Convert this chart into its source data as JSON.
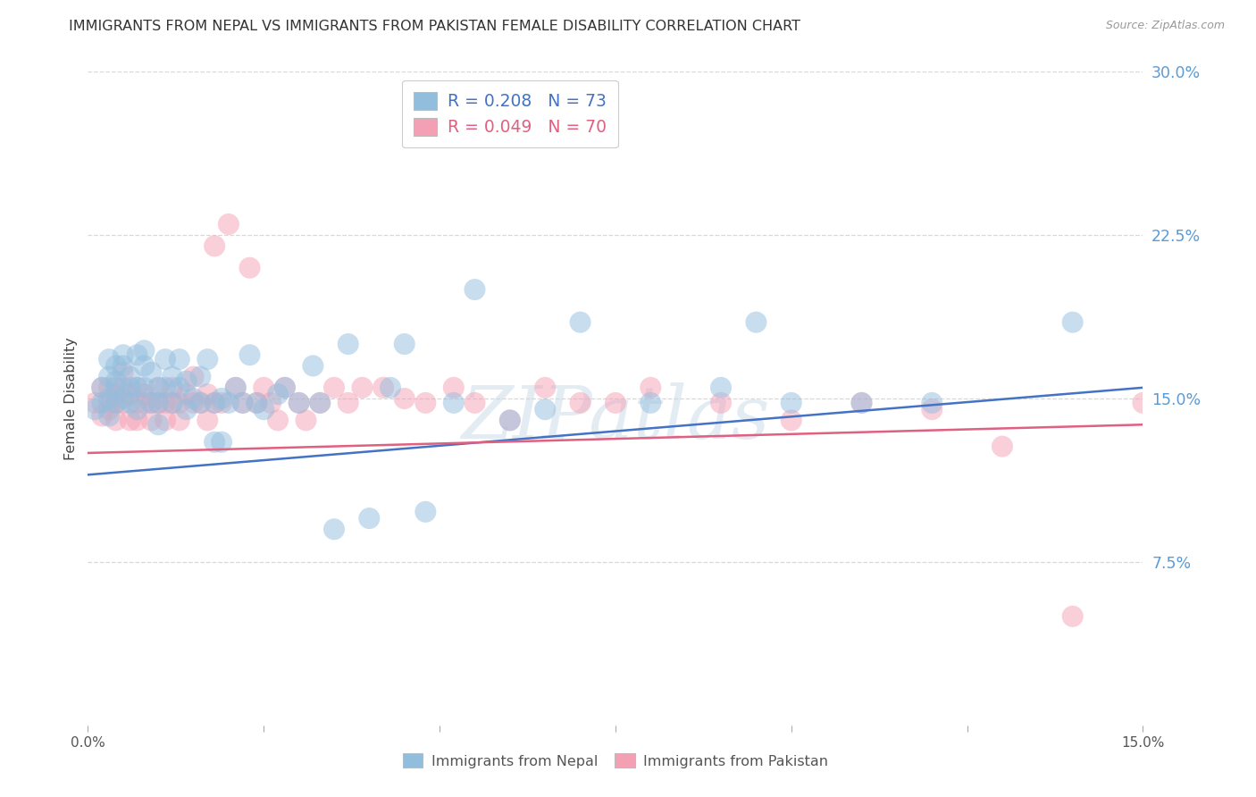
{
  "title": "IMMIGRANTS FROM NEPAL VS IMMIGRANTS FROM PAKISTAN FEMALE DISABILITY CORRELATION CHART",
  "source": "Source: ZipAtlas.com",
  "ylabel": "Female Disability",
  "x_min": 0.0,
  "x_max": 0.15,
  "y_min": 0.0,
  "y_max": 0.3,
  "y_ticks_right": [
    0.075,
    0.15,
    0.225,
    0.3
  ],
  "y_tick_labels_right": [
    "7.5%",
    "15.0%",
    "22.5%",
    "30.0%"
  ],
  "nepal_R": 0.208,
  "nepal_N": 73,
  "pakistan_R": 0.049,
  "pakistan_N": 70,
  "nepal_color": "#92bede",
  "pakistan_color": "#f4a0b4",
  "nepal_line_color": "#4472c4",
  "pakistan_line_color": "#e06080",
  "nepal_legend_color": "#4472c4",
  "pakistan_legend_color": "#e06080",
  "legend_label_nepal": "Immigrants from Nepal",
  "legend_label_pakistan": "Immigrants from Pakistan",
  "watermark": "ZIPatlas",
  "background_color": "#ffffff",
  "grid_color": "#d8d8d8",
  "right_tick_color": "#5b9bd5",
  "title_fontsize": 11.5,
  "nepal_x": [
    0.001,
    0.002,
    0.002,
    0.003,
    0.003,
    0.003,
    0.003,
    0.004,
    0.004,
    0.004,
    0.004,
    0.005,
    0.005,
    0.005,
    0.006,
    0.006,
    0.006,
    0.007,
    0.007,
    0.007,
    0.008,
    0.008,
    0.008,
    0.009,
    0.009,
    0.01,
    0.01,
    0.01,
    0.011,
    0.011,
    0.012,
    0.012,
    0.013,
    0.013,
    0.014,
    0.014,
    0.015,
    0.016,
    0.016,
    0.017,
    0.018,
    0.018,
    0.019,
    0.019,
    0.02,
    0.021,
    0.022,
    0.023,
    0.024,
    0.025,
    0.027,
    0.028,
    0.03,
    0.032,
    0.033,
    0.035,
    0.037,
    0.04,
    0.043,
    0.045,
    0.048,
    0.052,
    0.055,
    0.06,
    0.065,
    0.07,
    0.08,
    0.09,
    0.095,
    0.1,
    0.11,
    0.12,
    0.14
  ],
  "nepal_y": [
    0.145,
    0.148,
    0.155,
    0.142,
    0.15,
    0.16,
    0.168,
    0.148,
    0.158,
    0.165,
    0.155,
    0.15,
    0.165,
    0.17,
    0.148,
    0.16,
    0.155,
    0.145,
    0.155,
    0.17,
    0.155,
    0.165,
    0.172,
    0.148,
    0.162,
    0.155,
    0.148,
    0.138,
    0.168,
    0.155,
    0.16,
    0.148,
    0.155,
    0.168,
    0.145,
    0.158,
    0.15,
    0.148,
    0.16,
    0.168,
    0.13,
    0.148,
    0.15,
    0.13,
    0.148,
    0.155,
    0.148,
    0.17,
    0.148,
    0.145,
    0.152,
    0.155,
    0.148,
    0.165,
    0.148,
    0.09,
    0.175,
    0.095,
    0.155,
    0.175,
    0.098,
    0.148,
    0.2,
    0.14,
    0.145,
    0.185,
    0.148,
    0.155,
    0.185,
    0.148,
    0.148,
    0.148,
    0.185
  ],
  "pakistan_x": [
    0.001,
    0.002,
    0.002,
    0.003,
    0.003,
    0.003,
    0.004,
    0.004,
    0.004,
    0.005,
    0.005,
    0.005,
    0.006,
    0.006,
    0.007,
    0.007,
    0.007,
    0.008,
    0.008,
    0.009,
    0.009,
    0.01,
    0.01,
    0.011,
    0.011,
    0.012,
    0.012,
    0.013,
    0.013,
    0.014,
    0.015,
    0.015,
    0.016,
    0.017,
    0.017,
    0.018,
    0.018,
    0.019,
    0.02,
    0.021,
    0.022,
    0.023,
    0.024,
    0.025,
    0.026,
    0.027,
    0.028,
    0.03,
    0.031,
    0.033,
    0.035,
    0.037,
    0.039,
    0.042,
    0.045,
    0.048,
    0.052,
    0.055,
    0.06,
    0.065,
    0.07,
    0.075,
    0.08,
    0.09,
    0.1,
    0.11,
    0.12,
    0.13,
    0.14,
    0.15
  ],
  "pakistan_y": [
    0.148,
    0.142,
    0.155,
    0.148,
    0.155,
    0.145,
    0.148,
    0.152,
    0.14,
    0.148,
    0.155,
    0.162,
    0.14,
    0.152,
    0.148,
    0.14,
    0.155,
    0.148,
    0.152,
    0.148,
    0.14,
    0.148,
    0.155,
    0.148,
    0.14,
    0.148,
    0.155,
    0.14,
    0.148,
    0.152,
    0.148,
    0.16,
    0.148,
    0.14,
    0.152,
    0.148,
    0.22,
    0.148,
    0.23,
    0.155,
    0.148,
    0.21,
    0.148,
    0.155,
    0.148,
    0.14,
    0.155,
    0.148,
    0.14,
    0.148,
    0.155,
    0.148,
    0.155,
    0.155,
    0.15,
    0.148,
    0.155,
    0.148,
    0.14,
    0.155,
    0.148,
    0.148,
    0.155,
    0.148,
    0.14,
    0.148,
    0.145,
    0.128,
    0.05,
    0.148
  ]
}
